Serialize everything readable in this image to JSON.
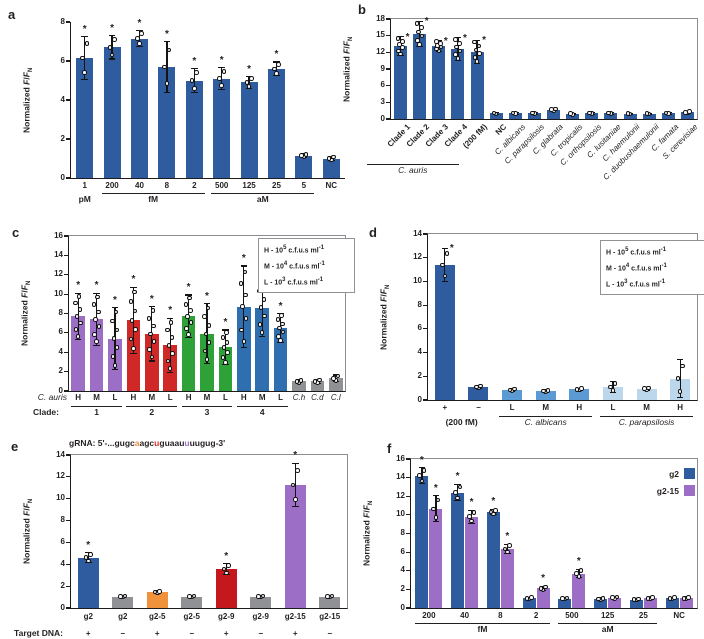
{
  "colors": {
    "navy": "#2e5c9e",
    "purple": "#9d6ec6",
    "red": "#d02827",
    "dark_red": "#c5181d",
    "green": "#2fa139",
    "clade4_blue": "#2f6fb0",
    "gray": "#8f9194",
    "orange": "#f0923c",
    "medium_blue": "#5b9ad2",
    "light_blue": "#bcd6ec",
    "text": "#231f20",
    "grna_orange": "#f0923c",
    "grna_red": "#e22b26",
    "grna_purple": "#9d6ec6"
  },
  "chart_data": [
    {
      "panel": "a",
      "type": "bar",
      "ylabel": "Normalized F/F_N",
      "ylim": [
        0,
        8
      ],
      "yticks": [
        0,
        2,
        4,
        6,
        8
      ],
      "categories": [
        "1",
        "200",
        "40",
        "8",
        "2",
        "500",
        "125",
        "25",
        "5",
        "NC"
      ],
      "values": [
        6.15,
        6.7,
        7.15,
        5.7,
        5.0,
        5.1,
        4.9,
        5.6,
        1.15,
        1.0
      ],
      "errors": [
        1.1,
        0.6,
        0.4,
        1.3,
        0.6,
        0.55,
        0.3,
        0.35,
        0.08,
        0.1
      ],
      "stars": [
        1,
        1,
        1,
        1,
        1,
        1,
        1,
        1,
        0,
        0
      ],
      "points_per_bar": 3,
      "bar_color": "#2e5c9e",
      "xrows": [
        {
          "groups": [
            {
              "label": "pM",
              "from": 0,
              "to": 0,
              "line": false
            },
            {
              "label": "fM",
              "from": 1,
              "to": 4,
              "line": true
            },
            {
              "label": "aM",
              "from": 5,
              "to": 8,
              "line": true
            }
          ]
        }
      ]
    },
    {
      "panel": "b",
      "type": "bar",
      "ylabel": "Normalized F/F_N",
      "ylim": [
        0,
        18
      ],
      "yticks": [
        0,
        3,
        6,
        9,
        12,
        15,
        18
      ],
      "categories": [
        "Clade 1",
        "Clade 2",
        "Clade 3",
        "Clade 4",
        "(200 fM)",
        "NC",
        "C. albicans",
        "C. parapsilosis",
        "C. glabrata",
        "C. tropicalis",
        "C. orthopsilosis",
        "C. lusitaniae",
        "C. haemulonii",
        "C. duobushaemulonii",
        "C. famata",
        "S. cerevisiae"
      ],
      "italics": [
        0,
        0,
        0,
        0,
        0,
        0,
        1,
        1,
        1,
        1,
        1,
        1,
        1,
        1,
        1,
        1
      ],
      "values": [
        13.1,
        15.3,
        13.1,
        12.6,
        12.1,
        1.0,
        1.0,
        1.0,
        1.7,
        0.9,
        1.0,
        1.0,
        0.95,
        0.95,
        1.0,
        1.2
      ],
      "errors": [
        1.7,
        2.3,
        1.0,
        2.0,
        2.1,
        0.15,
        0.12,
        0.12,
        0.2,
        0.1,
        0.12,
        0.12,
        0.1,
        0.1,
        0.12,
        0.15
      ],
      "stars": [
        1,
        1,
        1,
        1,
        1,
        0,
        0,
        0,
        0,
        0,
        0,
        0,
        0,
        0,
        0,
        0
      ],
      "points_per_bar": 6,
      "ns": [
        6,
        6,
        6,
        6,
        6,
        2,
        2,
        2,
        3,
        2,
        2,
        2,
        2,
        2,
        2,
        3
      ],
      "bar_color": "#2e5c9e",
      "rot_group": {
        "label": "C. auris",
        "from": 0,
        "to": 4
      }
    },
    {
      "panel": "c",
      "type": "bar",
      "ylabel": "Normalized F/F_N",
      "ylim": [
        0,
        16
      ],
      "yticks": [
        0,
        2,
        4,
        6,
        8,
        10,
        12,
        14,
        16
      ],
      "categories": [
        "H",
        "M",
        "L",
        "H",
        "M",
        "L",
        "H",
        "M",
        "L",
        "H",
        "M",
        "L",
        "C.h",
        "C.d",
        "C.l"
      ],
      "italics": [
        0,
        0,
        0,
        0,
        0,
        0,
        0,
        0,
        0,
        0,
        0,
        0,
        1,
        1,
        1
      ],
      "cat_prefix": {
        "text": "C. auris",
        "italic": true
      },
      "values": [
        7.7,
        7.4,
        5.4,
        7.3,
        5.9,
        4.7,
        7.7,
        5.9,
        4.5,
        8.7,
        8.6,
        6.5,
        1.0,
        1.0,
        1.3
      ],
      "errors": [
        2.4,
        2.7,
        3.2,
        3.4,
        2.8,
        2.8,
        2.2,
        3.1,
        1.8,
        4.2,
        3.0,
        1.5,
        0.15,
        0.2,
        0.35
      ],
      "stars": [
        1,
        1,
        1,
        1,
        1,
        1,
        1,
        1,
        1,
        1,
        1,
        1,
        0,
        0,
        0
      ],
      "points_per_bar": 7,
      "ns": [
        7,
        7,
        7,
        7,
        7,
        7,
        7,
        7,
        7,
        7,
        7,
        7,
        3,
        3,
        3
      ],
      "bar_colors": [
        "#9d6ec6",
        "#9d6ec6",
        "#9d6ec6",
        "#d02827",
        "#d02827",
        "#d02827",
        "#2fa139",
        "#2fa139",
        "#2fa139",
        "#2f6fb0",
        "#2f6fb0",
        "#2f6fb0",
        "#8f9194",
        "#8f9194",
        "#8f9194"
      ],
      "xrows": [
        {
          "prefix": "Clade:",
          "groups": [
            {
              "label": "1",
              "from": 0,
              "to": 2,
              "line": true
            },
            {
              "label": "2",
              "from": 3,
              "to": 5,
              "line": true
            },
            {
              "label": "3",
              "from": 6,
              "to": 8,
              "line": true
            },
            {
              "label": "4",
              "from": 9,
              "to": 11,
              "line": true
            }
          ]
        }
      ],
      "legend": {
        "box": true,
        "lines": [
          "H - 10^5 c.f.u.s ml^-1",
          "M - 10^4 c.f.u.s ml^-1",
          "L - 10^3 c.f.u.s ml^-1"
        ]
      }
    },
    {
      "panel": "d",
      "type": "bar",
      "ylabel": "Normalized F/F_N",
      "ylim": [
        0,
        14
      ],
      "yticks": [
        0,
        2,
        4,
        6,
        8,
        10,
        12,
        14
      ],
      "categories": [
        "+",
        "−",
        "L",
        "M",
        "H",
        "L",
        "M",
        "H"
      ],
      "values": [
        11.4,
        1.1,
        0.85,
        0.75,
        0.9,
        1.1,
        0.95,
        1.8
      ],
      "errors": [
        1.4,
        0.12,
        0.1,
        0.08,
        0.1,
        0.45,
        0.1,
        1.6
      ],
      "stars": [
        1,
        0,
        0,
        0,
        0,
        0,
        0,
        0
      ],
      "points_per_bar": 3,
      "bar_colors": [
        "#2e5c9e",
        "#2e5c9e",
        "#5b9ad2",
        "#5b9ad2",
        "#5b9ad2",
        "#bcd6ec",
        "#bcd6ec",
        "#bcd6ec"
      ],
      "xrows": [
        {
          "groups": [
            {
              "label": "(200 fM)",
              "from": 0,
              "to": 1,
              "line": false
            },
            {
              "label": "C. albicans",
              "from": 2,
              "to": 4,
              "line": true,
              "italic": true
            },
            {
              "label": "C. parapsilosis",
              "from": 5,
              "to": 7,
              "line": true,
              "italic": true
            }
          ]
        }
      ],
      "legend": {
        "box": true,
        "lines": [
          "H - 10^5 c.f.u.s ml^-1",
          "M - 10^4 c.f.u.s ml^-1",
          "L - 10^3 c.f.u.s ml^-1"
        ]
      }
    },
    {
      "panel": "e",
      "type": "bar",
      "ylabel": "Normalized F/F_N",
      "ylim": [
        0,
        14
      ],
      "yticks": [
        0,
        2,
        4,
        6,
        8,
        10,
        12,
        14
      ],
      "title_segments": [
        {
          "text": "gRNA: 5'-...gugc",
          "color": "#231f20"
        },
        {
          "text": "a",
          "color": "#f0923c"
        },
        {
          "text": "agc",
          "color": "#231f20"
        },
        {
          "text": "u",
          "color": "#e22b26"
        },
        {
          "text": "guaau",
          "color": "#231f20"
        },
        {
          "text": "u",
          "color": "#9d6ec6"
        },
        {
          "text": "uugug-3'",
          "color": "#231f20"
        }
      ],
      "categories": [
        "g2",
        "g2",
        "g2-5",
        "g2-5",
        "g2-9",
        "g2-9",
        "g2-15",
        "g2-15"
      ],
      "values": [
        4.6,
        1.05,
        1.45,
        1.05,
        3.55,
        1.05,
        11.25,
        1.05
      ],
      "errors": [
        0.45,
        0.08,
        0.12,
        0.08,
        0.5,
        0.08,
        2.0,
        0.08
      ],
      "stars": [
        1,
        0,
        0,
        0,
        1,
        0,
        1,
        0
      ],
      "points_per_bar": 3,
      "bar_colors": [
        "#2e5c9e",
        "#8f9194",
        "#f0923c",
        "#8f9194",
        "#c5181d",
        "#8f9194",
        "#9d6ec6",
        "#8f9194"
      ],
      "xrows": [
        {
          "prefix": "Target DNA:",
          "values": [
            "+",
            "−",
            "+",
            "−",
            "+",
            "−",
            "+",
            "−"
          ]
        }
      ]
    },
    {
      "panel": "f",
      "type": "bar",
      "ylabel": "Normalized F/F_N",
      "ylim": [
        0,
        16
      ],
      "yticks": [
        0,
        2,
        4,
        6,
        8,
        10,
        12,
        14,
        16
      ],
      "categories": [
        "200",
        "40",
        "8",
        "2",
        "500",
        "125",
        "25",
        "NC"
      ],
      "series": [
        {
          "name": "g2",
          "color": "#2e5c9e",
          "values": [
            14.2,
            12.4,
            10.3,
            1.05,
            1.0,
            0.95,
            0.9,
            1.05
          ],
          "errors": [
            0.85,
            0.9,
            0.3,
            0.1,
            0.08,
            0.08,
            0.08,
            0.1
          ],
          "stars": [
            1,
            1,
            1,
            0,
            0,
            0,
            0,
            0
          ]
        },
        {
          "name": "g2-15",
          "color": "#9d6ec6",
          "values": [
            10.65,
            9.8,
            6.35,
            2.1,
            3.7,
            1.1,
            1.05,
            1.05
          ],
          "errors": [
            1.4,
            0.7,
            0.5,
            0.25,
            0.45,
            0.1,
            0.08,
            0.08
          ],
          "stars": [
            1,
            1,
            1,
            1,
            1,
            0,
            0,
            0
          ]
        }
      ],
      "points_per_bar": 3,
      "xrows": [
        {
          "groups": [
            {
              "label": "fM",
              "from": 0,
              "to": 3,
              "line": true
            },
            {
              "label": "aM",
              "from": 4,
              "to": 6,
              "line": true
            }
          ]
        }
      ],
      "legend": {
        "box": false,
        "items": [
          {
            "label": "g2",
            "color": "#2e5c9e"
          },
          {
            "label": "g2-15",
            "color": "#9d6ec6"
          }
        ]
      }
    }
  ]
}
